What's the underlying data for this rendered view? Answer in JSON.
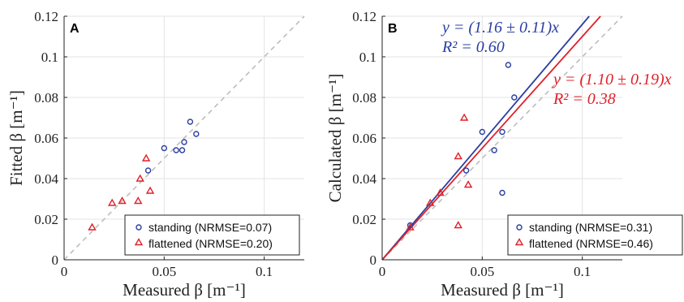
{
  "colors": {
    "standing": "#2b3fa0",
    "flattened": "#e0202a",
    "identity": "#bdbdbd"
  },
  "chart_data": [
    {
      "type": "scatter",
      "panel_label": "A",
      "xlabel": "Measured β [m⁻¹]",
      "ylabel": "Fitted β [m⁻¹]",
      "xlim": [
        0,
        0.12
      ],
      "ylim": [
        0,
        0.12
      ],
      "xticks": [
        "0",
        "0.05",
        "0.1"
      ],
      "xtick_values": [
        0,
        0.05,
        0.1
      ],
      "yticks": [
        "0",
        "0.02",
        "0.04",
        "0.06",
        "0.08",
        "0.1",
        "0.12"
      ],
      "ytick_values": [
        0,
        0.02,
        0.04,
        0.06,
        0.08,
        0.1,
        0.12
      ],
      "grid": true,
      "legend_position": "bottom-right",
      "series": [
        {
          "name": "standing (NRMSE=0.07)",
          "marker": "circle",
          "color": "#2b3fa0",
          "points": [
            [
              0.042,
              0.044
            ],
            [
              0.05,
              0.055
            ],
            [
              0.056,
              0.054
            ],
            [
              0.059,
              0.054
            ],
            [
              0.06,
              0.058
            ],
            [
              0.063,
              0.068
            ],
            [
              0.066,
              0.062
            ]
          ]
        },
        {
          "name": "flattened (NRMSE=0.20)",
          "marker": "triangle",
          "color": "#e0202a",
          "points": [
            [
              0.014,
              0.016
            ],
            [
              0.024,
              0.028
            ],
            [
              0.029,
              0.029
            ],
            [
              0.037,
              0.029
            ],
            [
              0.038,
              0.04
            ],
            [
              0.041,
              0.05
            ],
            [
              0.043,
              0.034
            ]
          ]
        }
      ]
    },
    {
      "type": "scatter",
      "panel_label": "B",
      "xlabel": "Measured β [m⁻¹]",
      "ylabel": "Calculated β [m⁻¹]",
      "xlim": [
        0,
        0.12
      ],
      "ylim": [
        0,
        0.12
      ],
      "xticks": [
        "0",
        "0.05",
        "0.1"
      ],
      "xtick_values": [
        0,
        0.05,
        0.1
      ],
      "yticks": [
        "0",
        "0.02",
        "0.04",
        "0.06",
        "0.08",
        "0.1",
        "0.12"
      ],
      "ytick_values": [
        0,
        0.02,
        0.04,
        0.06,
        0.08,
        0.1,
        0.12
      ],
      "grid": true,
      "legend_position": "bottom-right",
      "series": [
        {
          "name": "standing (NRMSE=0.31)",
          "marker": "circle",
          "color": "#2b3fa0",
          "points": [
            [
              0.014,
              0.017
            ],
            [
              0.042,
              0.044
            ],
            [
              0.05,
              0.063
            ],
            [
              0.056,
              0.054
            ],
            [
              0.06,
              0.033
            ],
            [
              0.06,
              0.063
            ],
            [
              0.063,
              0.096
            ],
            [
              0.066,
              0.08
            ]
          ]
        },
        {
          "name": "flattened (NRMSE=0.46)",
          "marker": "triangle",
          "color": "#e0202a",
          "points": [
            [
              0.014,
              0.016
            ],
            [
              0.024,
              0.028
            ],
            [
              0.029,
              0.033
            ],
            [
              0.038,
              0.051
            ],
            [
              0.038,
              0.017
            ],
            [
              0.041,
              0.07
            ],
            [
              0.043,
              0.037
            ]
          ]
        }
      ],
      "fits": [
        {
          "slope": 1.16,
          "color": "#2b3fa0",
          "equation": "y = (1.16 ± 0.11)x",
          "r2": "R² = 0.60"
        },
        {
          "slope": 1.1,
          "color": "#e0202a",
          "equation": "y = (1.10 ± 0.19)x",
          "r2": "R² = 0.38"
        }
      ]
    }
  ]
}
